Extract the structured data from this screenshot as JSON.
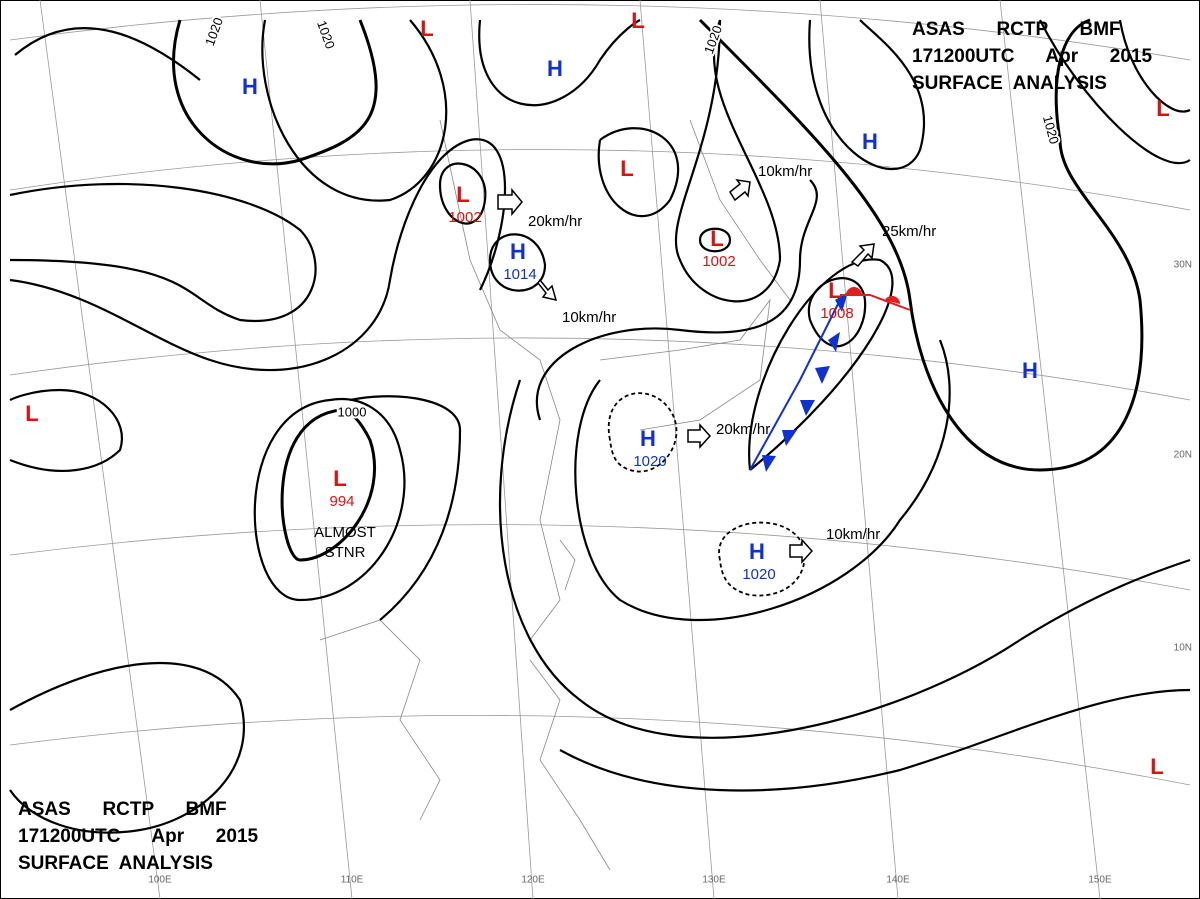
{
  "headers": [
    {
      "lines": [
        "ASAS      RCTP      BMF",
        "171200UTC      Apr      2015",
        "SURFACE  ANALYSIS"
      ]
    },
    {
      "lines": [
        "ASAS      RCTP      BMF",
        "171200UTC      Apr      2015",
        "SURFACE  ANALYSIS"
      ]
    }
  ],
  "centers": [
    {
      "symbol": "L"
    },
    {
      "symbol": "L"
    },
    {
      "symbol": "H"
    },
    {
      "symbol": "H"
    },
    {
      "symbol": "L",
      "pressure": 1002
    },
    {
      "symbol": "H",
      "pressure": 1014
    },
    {
      "symbol": "L"
    },
    {
      "symbol": "L",
      "pressure": 1002
    },
    {
      "symbol": "L",
      "pressure": 1008
    },
    {
      "symbol": "H"
    },
    {
      "symbol": "L"
    },
    {
      "symbol": "H"
    },
    {
      "symbol": "L"
    },
    {
      "symbol": "L",
      "pressure": 994
    },
    {
      "symbol": "H",
      "pressure": 1020
    },
    {
      "symbol": "H",
      "pressure": 1020
    },
    {
      "symbol": "L"
    }
  ],
  "isobar_labels": [
    1020,
    1020,
    1000,
    1020,
    1020
  ],
  "motion_labels": [
    "20km/hr",
    "10km/hr",
    "10km/hr",
    "25km/hr",
    "20km/hr",
    "10km/hr"
  ],
  "annotations": [
    "ALMOST",
    "STNR"
  ],
  "longitude_labels": [
    "100E",
    "110E",
    "120E",
    "130E",
    "140E",
    "150E"
  ],
  "latitude_labels": [
    "30N",
    "20N",
    "10N"
  ]
}
